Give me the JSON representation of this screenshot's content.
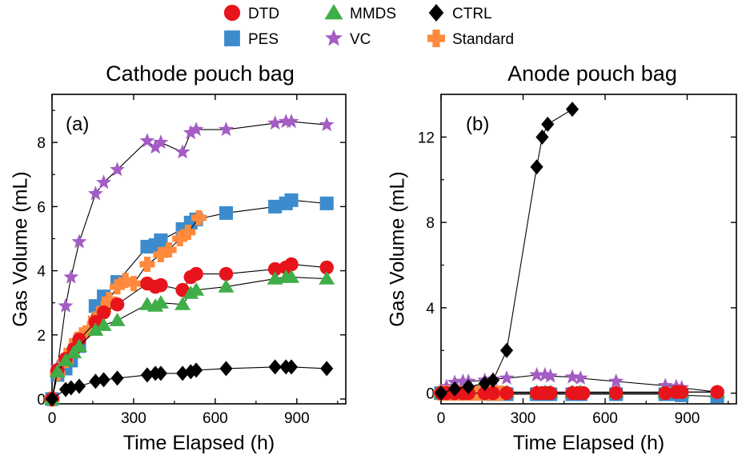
{
  "legend": [
    {
      "name": "DTD",
      "marker": "circle",
      "color": "#e8141b"
    },
    {
      "name": "MMDS",
      "marker": "triangle",
      "color": "#3fae49"
    },
    {
      "name": "CTRL",
      "marker": "diamond",
      "color": "#000000"
    },
    {
      "name": "PES",
      "marker": "square",
      "color": "#3c8ccd"
    },
    {
      "name": "VC",
      "marker": "star",
      "color": "#a45dc4"
    },
    {
      "name": "Standard",
      "marker": "plus",
      "color": "#ff8a3d"
    }
  ],
  "chart_data": [
    {
      "type": "line",
      "panel_label": "(a)",
      "title": "Cathode pouch bag",
      "xlabel": "Time Elapsed (h)",
      "ylabel": "Gas Volume (mL)",
      "xlim": [
        0,
        1080
      ],
      "ylim": [
        -0.15,
        9.5
      ],
      "xticks": [
        0,
        300,
        600,
        900
      ],
      "yticks": [
        0,
        2,
        4,
        6,
        8
      ],
      "series": [
        {
          "name": "VC",
          "marker": "star",
          "color": "#a45dc4",
          "x": [
            0,
            20,
            50,
            70,
            100,
            160,
            190,
            240,
            350,
            380,
            400,
            480,
            510,
            530,
            640,
            820,
            860,
            880,
            1010
          ],
          "y": [
            0,
            1.0,
            2.9,
            3.8,
            4.9,
            6.4,
            6.75,
            7.15,
            8.05,
            7.85,
            8.0,
            7.7,
            8.3,
            8.4,
            8.4,
            8.6,
            8.65,
            8.65,
            8.55
          ]
        },
        {
          "name": "PES",
          "marker": "square",
          "color": "#3c8ccd",
          "x": [
            0,
            20,
            50,
            70,
            100,
            160,
            190,
            240,
            350,
            380,
            400,
            480,
            510,
            530,
            640,
            820,
            860,
            880,
            1010
          ],
          "y": [
            0,
            0.75,
            0.95,
            1.2,
            1.65,
            2.9,
            3.2,
            3.65,
            4.75,
            4.8,
            4.95,
            5.3,
            5.5,
            5.6,
            5.8,
            6.0,
            6.1,
            6.2,
            6.1
          ]
        },
        {
          "name": "Standard",
          "marker": "plus",
          "color": "#ff8a3d",
          "x": [
            0,
            20,
            50,
            70,
            90,
            110,
            140,
            160,
            190,
            210,
            240,
            270,
            300,
            350,
            400,
            430,
            470,
            500,
            540
          ],
          "y": [
            0,
            0.8,
            1.2,
            1.5,
            1.8,
            2.0,
            2.2,
            2.5,
            2.8,
            3.1,
            3.5,
            3.7,
            3.6,
            4.2,
            4.5,
            4.65,
            5.0,
            5.2,
            5.65
          ]
        },
        {
          "name": "DTD",
          "marker": "circle",
          "color": "#e8141b",
          "x": [
            0,
            20,
            50,
            80,
            100,
            160,
            190,
            240,
            350,
            380,
            400,
            480,
            510,
            530,
            640,
            820,
            860,
            880,
            1010
          ],
          "y": [
            0,
            0.9,
            1.25,
            1.55,
            1.85,
            2.4,
            2.7,
            2.95,
            3.6,
            3.5,
            3.55,
            3.4,
            3.8,
            3.9,
            3.9,
            4.05,
            4.1,
            4.2,
            4.1
          ]
        },
        {
          "name": "MMDS",
          "marker": "triangle",
          "color": "#3fae49",
          "x": [
            0,
            20,
            50,
            80,
            100,
            160,
            190,
            240,
            350,
            380,
            400,
            480,
            510,
            530,
            640,
            820,
            860,
            880,
            1010
          ],
          "y": [
            0,
            0.85,
            1.2,
            1.45,
            1.65,
            2.15,
            2.3,
            2.45,
            2.95,
            2.9,
            3.0,
            2.95,
            3.3,
            3.4,
            3.5,
            3.75,
            3.8,
            3.8,
            3.75
          ]
        },
        {
          "name": "CTRL",
          "marker": "diamond",
          "color": "#000000",
          "x": [
            0,
            50,
            70,
            100,
            160,
            190,
            240,
            350,
            380,
            400,
            480,
            510,
            530,
            640,
            820,
            860,
            880,
            1010
          ],
          "y": [
            0,
            0.3,
            0.35,
            0.4,
            0.55,
            0.6,
            0.65,
            0.75,
            0.8,
            0.8,
            0.8,
            0.85,
            0.9,
            0.95,
            1.0,
            1.0,
            1.0,
            0.95
          ]
        }
      ]
    },
    {
      "type": "line",
      "panel_label": "(b)",
      "title": "Anode pouch bag",
      "xlabel": "Time Elapsed (h)",
      "ylabel": "Gas Volume (mL)",
      "xlim": [
        0,
        1080
      ],
      "ylim": [
        -0.5,
        14
      ],
      "xticks": [
        0,
        300,
        600,
        900
      ],
      "yticks": [
        0,
        4,
        8,
        12
      ],
      "series": [
        {
          "name": "PES",
          "marker": "square",
          "color": "#3c8ccd",
          "x": [
            0,
            20,
            50,
            80,
            100,
            160,
            190,
            240,
            350,
            380,
            400,
            480,
            510,
            640,
            820,
            860,
            880,
            1010
          ],
          "y": [
            0,
            0,
            0,
            0,
            0,
            0,
            -0.05,
            -0.05,
            -0.05,
            -0.05,
            -0.05,
            -0.05,
            -0.05,
            -0.05,
            -0.05,
            -0.05,
            -0.1,
            -0.15
          ]
        },
        {
          "name": "VC",
          "marker": "star",
          "color": "#a45dc4",
          "x": [
            0,
            20,
            50,
            80,
            100,
            160,
            190,
            240,
            350,
            380,
            400,
            480,
            510,
            640,
            820,
            860,
            880,
            1010
          ],
          "y": [
            0,
            0.3,
            0.5,
            0.55,
            0.55,
            0.6,
            0.65,
            0.7,
            0.85,
            0.85,
            0.8,
            0.75,
            0.7,
            0.55,
            0.35,
            0.3,
            0.25,
            0.05
          ]
        },
        {
          "name": "MMDS",
          "marker": "triangle",
          "color": "#3fae49",
          "x": [
            0,
            20,
            50,
            80,
            100,
            160,
            190,
            240,
            350,
            380,
            400,
            480,
            510,
            640,
            820,
            860,
            880,
            1010
          ],
          "y": [
            0,
            0.05,
            0.05,
            0.05,
            0.05,
            0.05,
            0.05,
            0.05,
            0.05,
            0.05,
            0.05,
            0.05,
            0.05,
            0.05,
            0.05,
            0.05,
            0.05,
            0.05
          ]
        },
        {
          "name": "Standard",
          "marker": "plus",
          "color": "#ff8a3d",
          "x": [
            0,
            20,
            40,
            60,
            80,
            100,
            120,
            140,
            160,
            180,
            200,
            220
          ],
          "y": [
            0,
            0,
            0,
            0,
            0,
            0,
            0,
            0,
            0,
            0,
            0,
            0
          ]
        },
        {
          "name": "DTD",
          "marker": "circle",
          "color": "#e8141b",
          "x": [
            0,
            20,
            50,
            80,
            100,
            160,
            190,
            240,
            350,
            370,
            390,
            400,
            480,
            500,
            520,
            640,
            820,
            860,
            880,
            1010
          ],
          "y": [
            0,
            0,
            0,
            0,
            0,
            0,
            0,
            0,
            0,
            0,
            0,
            0,
            0,
            0,
            0,
            0,
            0,
            0.05,
            0.05,
            0.05
          ]
        },
        {
          "name": "CTRL",
          "marker": "diamond",
          "color": "#000000",
          "x": [
            0,
            50,
            100,
            160,
            190,
            240,
            350,
            370,
            390,
            480
          ],
          "y": [
            0,
            0.2,
            0.3,
            0.45,
            0.6,
            2.0,
            10.6,
            12.0,
            12.6,
            13.3
          ]
        }
      ]
    }
  ]
}
